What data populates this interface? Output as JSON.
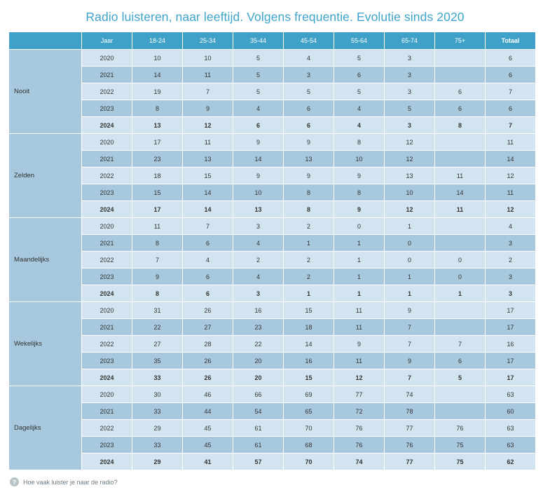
{
  "title": "Radio luisteren, naar leeftijd. Volgens frequentie. Evolutie sinds 2020",
  "footer_question": "Hoe vaak luister je naar de radio?",
  "footer_icon": "question-icon",
  "colors": {
    "title": "#3fa4c9",
    "header": "#3fa1c8",
    "row_light": "#d2e4ef",
    "row_dark": "#a8c8dd"
  },
  "columns": [
    "Jaar",
    "18-24",
    "25-34",
    "35-44",
    "45-54",
    "55-64",
    "65-74",
    "75+",
    "Totaal"
  ],
  "chart_data": {
    "type": "table",
    "title": "Radio luisteren, naar leeftijd. Volgens frequentie. Evolutie sinds 2020",
    "columns": [
      "Jaar",
      "18-24",
      "25-34",
      "35-44",
      "45-54",
      "55-64",
      "65-74",
      "75+",
      "Totaal"
    ],
    "groups": [
      {
        "label": "Nooit",
        "rows": [
          [
            "2020",
            "10",
            "10",
            "5",
            "4",
            "5",
            "3",
            "",
            "6"
          ],
          [
            "2021",
            "14",
            "11",
            "5",
            "3",
            "6",
            "3",
            "",
            "6"
          ],
          [
            "2022",
            "19",
            "7",
            "5",
            "5",
            "5",
            "3",
            "6",
            "7"
          ],
          [
            "2023",
            "8",
            "9",
            "4",
            "6",
            "4",
            "5",
            "6",
            "6"
          ],
          [
            "2024",
            "13",
            "12",
            "6",
            "6",
            "4",
            "3",
            "8",
            "7"
          ]
        ]
      },
      {
        "label": "Zelden",
        "rows": [
          [
            "2020",
            "17",
            "11",
            "9",
            "9",
            "8",
            "12",
            "",
            "11"
          ],
          [
            "2021",
            "23",
            "13",
            "14",
            "13",
            "10",
            "12",
            "",
            "14"
          ],
          [
            "2022",
            "18",
            "15",
            "9",
            "9",
            "9",
            "13",
            "11",
            "12"
          ],
          [
            "2023",
            "15",
            "14",
            "10",
            "8",
            "8",
            "10",
            "14",
            "11"
          ],
          [
            "2024",
            "17",
            "14",
            "13",
            "8",
            "9",
            "12",
            "11",
            "12"
          ]
        ]
      },
      {
        "label": "Maandelijks",
        "rows": [
          [
            "2020",
            "11",
            "7",
            "3",
            "2",
            "0",
            "1",
            "",
            "4"
          ],
          [
            "2021",
            "8",
            "6",
            "4",
            "1",
            "1",
            "0",
            "",
            "3"
          ],
          [
            "2022",
            "7",
            "4",
            "2",
            "2",
            "1",
            "0",
            "0",
            "2"
          ],
          [
            "2023",
            "9",
            "6",
            "4",
            "2",
            "1",
            "1",
            "0",
            "3"
          ],
          [
            "2024",
            "8",
            "6",
            "3",
            "1",
            "1",
            "1",
            "1",
            "3"
          ]
        ]
      },
      {
        "label": "Wekelijks",
        "rows": [
          [
            "2020",
            "31",
            "26",
            "16",
            "15",
            "11",
            "9",
            "",
            "17"
          ],
          [
            "2021",
            "22",
            "27",
            "23",
            "18",
            "11",
            "7",
            "",
            "17"
          ],
          [
            "2022",
            "27",
            "28",
            "22",
            "14",
            "9",
            "7",
            "7",
            "16"
          ],
          [
            "2023",
            "35",
            "26",
            "20",
            "16",
            "11",
            "9",
            "6",
            "17"
          ],
          [
            "2024",
            "33",
            "26",
            "20",
            "15",
            "12",
            "7",
            "5",
            "17"
          ]
        ]
      },
      {
        "label": "Dagelijks",
        "rows": [
          [
            "2020",
            "30",
            "46",
            "66",
            "69",
            "77",
            "74",
            "",
            "63"
          ],
          [
            "2021",
            "33",
            "44",
            "54",
            "65",
            "72",
            "78",
            "",
            "60"
          ],
          [
            "2022",
            "29",
            "45",
            "61",
            "70",
            "76",
            "77",
            "76",
            "63"
          ],
          [
            "2023",
            "33",
            "45",
            "61",
            "68",
            "76",
            "76",
            "75",
            "63"
          ],
          [
            "2024",
            "29",
            "41",
            "57",
            "70",
            "74",
            "77",
            "75",
            "62"
          ]
        ]
      }
    ]
  }
}
